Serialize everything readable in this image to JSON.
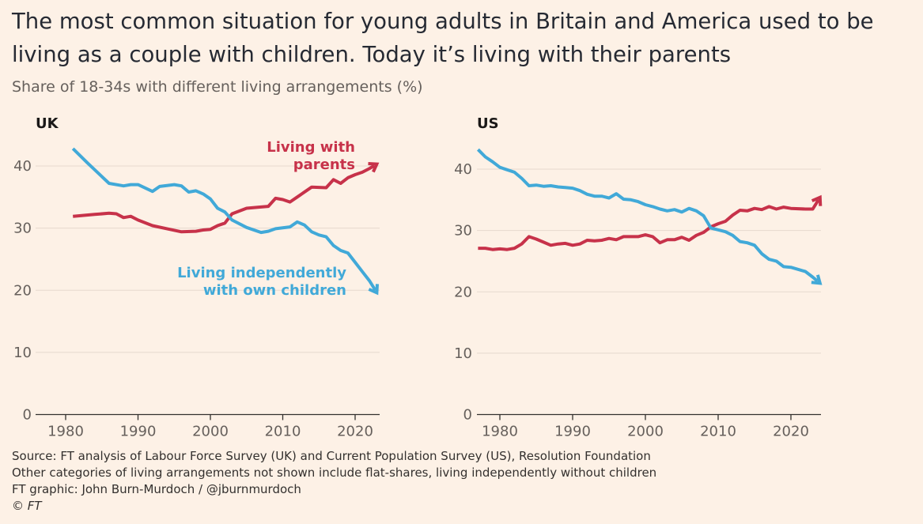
{
  "title": "The most common situation for young adults in Britain and America used to be living as a couple with children. Today it’s living with their parents",
  "subtitle": "Share of 18-34s with different living arrangements (%)",
  "colors": {
    "parents": "#c7324a",
    "independent": "#41a9d8",
    "background": "#fdf1e6"
  },
  "chart_data": [
    {
      "type": "line",
      "title": "UK",
      "xlim": [
        1977,
        2023
      ],
      "ylim": [
        0,
        45
      ],
      "xticks": [
        1980,
        1990,
        2000,
        2010,
        2020
      ],
      "yticks": [
        0,
        10,
        20,
        30,
        40
      ],
      "grid": true,
      "series": [
        {
          "name": "Living with parents",
          "color": "#c7324a",
          "label_lines": [
            "Living with",
            "parents"
          ],
          "points": [
            [
              1981,
              31.9
            ],
            [
              1984,
              32.2
            ],
            [
              1986,
              32.4
            ],
            [
              1987,
              32.3
            ],
            [
              1988,
              31.7
            ],
            [
              1989,
              31.9
            ],
            [
              1990,
              31.3
            ],
            [
              1992,
              30.4
            ],
            [
              1994,
              29.9
            ],
            [
              1996,
              29.4
            ],
            [
              1998,
              29.5
            ],
            [
              1999,
              29.7
            ],
            [
              2000,
              29.8
            ],
            [
              2001,
              30.4
            ],
            [
              2002,
              30.8
            ],
            [
              2003,
              32.3
            ],
            [
              2005,
              33.2
            ],
            [
              2007,
              33.4
            ],
            [
              2008,
              33.5
            ],
            [
              2009,
              34.8
            ],
            [
              2010,
              34.6
            ],
            [
              2011,
              34.2
            ],
            [
              2012,
              35.0
            ],
            [
              2014,
              36.6
            ],
            [
              2016,
              36.5
            ],
            [
              2017,
              37.8
            ],
            [
              2018,
              37.2
            ],
            [
              2019,
              38.1
            ],
            [
              2020,
              38.6
            ],
            [
              2021,
              39.0
            ],
            [
              2022,
              39.6
            ],
            [
              2023,
              40.3
            ]
          ]
        },
        {
          "name": "Living independently with own children",
          "color": "#41a9d8",
          "label_lines": [
            "Living independently",
            "with own children"
          ],
          "points": [
            [
              1981,
              42.8
            ],
            [
              1983,
              40.5
            ],
            [
              1986,
              37.2
            ],
            [
              1988,
              36.8
            ],
            [
              1989,
              37.0
            ],
            [
              1990,
              37.0
            ],
            [
              1992,
              35.9
            ],
            [
              1993,
              36.7
            ],
            [
              1995,
              37.0
            ],
            [
              1996,
              36.8
            ],
            [
              1997,
              35.8
            ],
            [
              1998,
              36.0
            ],
            [
              1999,
              35.5
            ],
            [
              2000,
              34.7
            ],
            [
              2001,
              33.2
            ],
            [
              2002,
              32.6
            ],
            [
              2003,
              31.3
            ],
            [
              2005,
              30.1
            ],
            [
              2007,
              29.3
            ],
            [
              2008,
              29.5
            ],
            [
              2009,
              29.9
            ],
            [
              2011,
              30.2
            ],
            [
              2012,
              31.0
            ],
            [
              2013,
              30.5
            ],
            [
              2014,
              29.4
            ],
            [
              2015,
              28.9
            ],
            [
              2016,
              28.6
            ],
            [
              2017,
              27.2
            ],
            [
              2018,
              26.4
            ],
            [
              2019,
              26.0
            ],
            [
              2020,
              24.5
            ],
            [
              2021,
              23.0
            ],
            [
              2022,
              21.5
            ],
            [
              2023,
              19.6
            ]
          ]
        }
      ]
    },
    {
      "type": "line",
      "title": "US",
      "xlim": [
        1977,
        2023
      ],
      "ylim": [
        0,
        45
      ],
      "xticks": [
        1980,
        1990,
        2000,
        2010,
        2020
      ],
      "yticks": [
        0,
        10,
        20,
        30,
        40
      ],
      "grid": true,
      "series": [
        {
          "name": "Living with parents",
          "color": "#c7324a",
          "points": [
            [
              1977,
              27.1
            ],
            [
              1978,
              27.1
            ],
            [
              1979,
              26.9
            ],
            [
              1980,
              27.0
            ],
            [
              1981,
              26.9
            ],
            [
              1982,
              27.1
            ],
            [
              1983,
              27.8
            ],
            [
              1984,
              29.0
            ],
            [
              1985,
              28.6
            ],
            [
              1986,
              28.1
            ],
            [
              1987,
              27.6
            ],
            [
              1988,
              27.8
            ],
            [
              1989,
              27.9
            ],
            [
              1990,
              27.6
            ],
            [
              1991,
              27.8
            ],
            [
              1992,
              28.4
            ],
            [
              1993,
              28.3
            ],
            [
              1994,
              28.4
            ],
            [
              1995,
              28.7
            ],
            [
              1996,
              28.5
            ],
            [
              1997,
              29.0
            ],
            [
              1998,
              29.0
            ],
            [
              1999,
              29.0
            ],
            [
              2000,
              29.3
            ],
            [
              2001,
              29.0
            ],
            [
              2002,
              28.0
            ],
            [
              2003,
              28.5
            ],
            [
              2004,
              28.5
            ],
            [
              2005,
              28.9
            ],
            [
              2006,
              28.4
            ],
            [
              2007,
              29.2
            ],
            [
              2008,
              29.7
            ],
            [
              2009,
              30.6
            ],
            [
              2010,
              31.1
            ],
            [
              2011,
              31.5
            ],
            [
              2012,
              32.5
            ],
            [
              2013,
              33.3
            ],
            [
              2014,
              33.2
            ],
            [
              2015,
              33.6
            ],
            [
              2016,
              33.4
            ],
            [
              2017,
              33.9
            ],
            [
              2018,
              33.5
            ],
            [
              2019,
              33.8
            ],
            [
              2020,
              33.6
            ],
            [
              2022,
              33.5
            ],
            [
              2023,
              33.5
            ],
            [
              2024,
              35.4
            ]
          ]
        },
        {
          "name": "Living independently with own children",
          "color": "#41a9d8",
          "points": [
            [
              1977,
              43.2
            ],
            [
              1978,
              42.0
            ],
            [
              1979,
              41.2
            ],
            [
              1980,
              40.3
            ],
            [
              1981,
              39.9
            ],
            [
              1982,
              39.5
            ],
            [
              1983,
              38.5
            ],
            [
              1984,
              37.3
            ],
            [
              1985,
              37.4
            ],
            [
              1986,
              37.2
            ],
            [
              1987,
              37.3
            ],
            [
              1988,
              37.1
            ],
            [
              1989,
              37.0
            ],
            [
              1990,
              36.9
            ],
            [
              1991,
              36.5
            ],
            [
              1992,
              35.9
            ],
            [
              1993,
              35.6
            ],
            [
              1994,
              35.6
            ],
            [
              1995,
              35.3
            ],
            [
              1996,
              36.0
            ],
            [
              1997,
              35.1
            ],
            [
              1998,
              35.0
            ],
            [
              1999,
              34.7
            ],
            [
              2000,
              34.2
            ],
            [
              2001,
              33.9
            ],
            [
              2002,
              33.5
            ],
            [
              2003,
              33.2
            ],
            [
              2004,
              33.4
            ],
            [
              2005,
              33.0
            ],
            [
              2006,
              33.6
            ],
            [
              2007,
              33.2
            ],
            [
              2008,
              32.4
            ],
            [
              2009,
              30.4
            ],
            [
              2010,
              30.1
            ],
            [
              2011,
              29.8
            ],
            [
              2012,
              29.2
            ],
            [
              2013,
              28.2
            ],
            [
              2014,
              28.0
            ],
            [
              2015,
              27.6
            ],
            [
              2016,
              26.2
            ],
            [
              2017,
              25.3
            ],
            [
              2018,
              25.0
            ],
            [
              2019,
              24.1
            ],
            [
              2020,
              24.0
            ],
            [
              2022,
              23.3
            ],
            [
              2023,
              22.4
            ],
            [
              2024,
              21.4
            ]
          ]
        }
      ]
    }
  ],
  "footer": {
    "source": "Source: FT analysis of Labour Force Survey (UK) and Current Population Survey (US), Resolution Foundation",
    "note": "Other categories of living arrangements not shown include flat-shares, living independently without children",
    "credit": "FT graphic: John Burn-Murdoch / @jburnmurdoch",
    "copyright": "© FT"
  }
}
